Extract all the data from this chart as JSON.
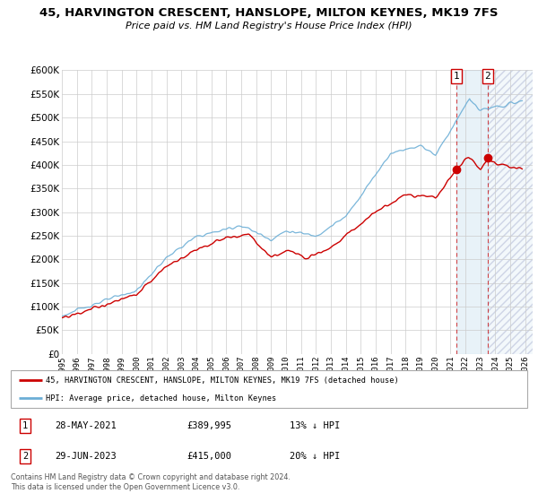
{
  "title": "45, HARVINGTON CRESCENT, HANSLOPE, MILTON KEYNES, MK19 7FS",
  "subtitle": "Price paid vs. HM Land Registry's House Price Index (HPI)",
  "ylim": [
    0,
    600000
  ],
  "yticks": [
    0,
    50000,
    100000,
    150000,
    200000,
    250000,
    300000,
    350000,
    400000,
    450000,
    500000,
    550000,
    600000
  ],
  "xlim_start": 1995.0,
  "xlim_end": 2026.5,
  "hpi_color": "#6baed6",
  "price_color": "#cc0000",
  "grid_color": "#cccccc",
  "sale1_x": 2021.41,
  "sale1_y": 389995,
  "sale2_x": 2023.49,
  "sale2_y": 415000,
  "sale1_label": "28-MAY-2021",
  "sale1_price": "£389,995",
  "sale1_pct": "13% ↓ HPI",
  "sale2_label": "29-JUN-2023",
  "sale2_price": "£415,000",
  "sale2_pct": "20% ↓ HPI",
  "legend_line1": "45, HARVINGTON CRESCENT, HANSLOPE, MILTON KEYNES, MK19 7FS (detached house)",
  "legend_line2": "HPI: Average price, detached house, Milton Keynes",
  "footer": "Contains HM Land Registry data © Crown copyright and database right 2024.\nThis data is licensed under the Open Government Licence v3.0.",
  "shade_start": 2021.41,
  "shade_end": 2023.49
}
